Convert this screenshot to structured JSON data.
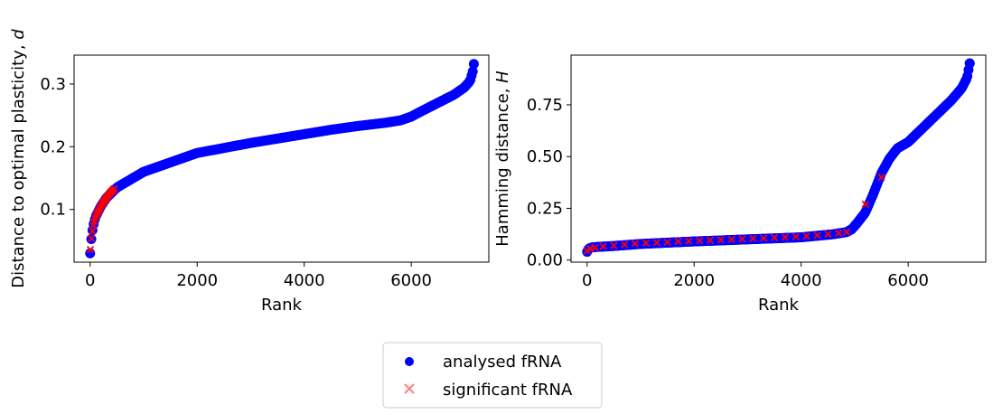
{
  "chart_data": [
    {
      "type": "scatter",
      "xlabel": "Rank",
      "ylabel": "Distance to optimal plasticity, ",
      "ylabel_var": "d",
      "xlim": [
        -300,
        7450
      ],
      "ylim": [
        0.016,
        0.346
      ],
      "xticks": [
        0,
        2000,
        4000,
        6000
      ],
      "xtick_labels": [
        "0",
        "2000",
        "4000",
        "6000"
      ],
      "yticks": [
        0.1,
        0.2,
        0.3
      ],
      "ytick_labels": [
        "0.1",
        "0.2",
        "0.3"
      ],
      "grid": false,
      "series": [
        {
          "name": "analysed fRNA",
          "marker": "circle",
          "color": "#0000ff",
          "curve": [
            [
              0,
              0.03
            ],
            [
              10,
              0.042
            ],
            [
              30,
              0.06
            ],
            [
              60,
              0.075
            ],
            [
              100,
              0.088
            ],
            [
              200,
              0.105
            ],
            [
              300,
              0.118
            ],
            [
              500,
              0.135
            ],
            [
              800,
              0.15
            ],
            [
              1000,
              0.16
            ],
            [
              1500,
              0.175
            ],
            [
              2000,
              0.19
            ],
            [
              2500,
              0.198
            ],
            [
              3000,
              0.206
            ],
            [
              3500,
              0.213
            ],
            [
              4000,
              0.22
            ],
            [
              4500,
              0.227
            ],
            [
              5000,
              0.233
            ],
            [
              5500,
              0.238
            ],
            [
              5800,
              0.242
            ],
            [
              6000,
              0.248
            ],
            [
              6200,
              0.257
            ],
            [
              6500,
              0.27
            ],
            [
              6800,
              0.283
            ],
            [
              7000,
              0.295
            ],
            [
              7100,
              0.305
            ],
            [
              7150,
              0.32
            ],
            [
              7170,
              0.332
            ]
          ]
        },
        {
          "name": "significant fRNA",
          "marker": "x",
          "color": "#ff0000",
          "curve": [
            [
              5,
              0.036
            ],
            [
              20,
              0.052
            ],
            [
              40,
              0.065
            ],
            [
              60,
              0.075
            ],
            [
              90,
              0.085
            ],
            [
              120,
              0.092
            ],
            [
              160,
              0.098
            ],
            [
              220,
              0.108
            ],
            [
              300,
              0.118
            ],
            [
              380,
              0.127
            ],
            [
              450,
              0.133
            ]
          ]
        }
      ]
    },
    {
      "type": "scatter",
      "xlabel": "Rank",
      "ylabel": "Hamming distance, ",
      "ylabel_var": "H",
      "xlim": [
        -300,
        7450
      ],
      "ylim": [
        -0.01,
        0.99
      ],
      "xticks": [
        0,
        2000,
        4000,
        6000
      ],
      "xtick_labels": [
        "0",
        "2000",
        "4000",
        "6000"
      ],
      "yticks": [
        0.0,
        0.25,
        0.5,
        0.75
      ],
      "ytick_labels": [
        "0.00",
        "0.25",
        "0.50",
        "0.75"
      ],
      "grid": false,
      "series": [
        {
          "name": "analysed fRNA",
          "marker": "circle",
          "color": "#0000ff",
          "curve": [
            [
              0,
              0.04
            ],
            [
              30,
              0.055
            ],
            [
              100,
              0.062
            ],
            [
              500,
              0.068
            ],
            [
              1000,
              0.078
            ],
            [
              2000,
              0.09
            ],
            [
              3000,
              0.1
            ],
            [
              4000,
              0.11
            ],
            [
              4600,
              0.125
            ],
            [
              4850,
              0.135
            ],
            [
              4950,
              0.15
            ],
            [
              5050,
              0.18
            ],
            [
              5200,
              0.23
            ],
            [
              5350,
              0.32
            ],
            [
              5500,
              0.42
            ],
            [
              5650,
              0.49
            ],
            [
              5800,
              0.54
            ],
            [
              6000,
              0.57
            ],
            [
              6200,
              0.62
            ],
            [
              6400,
              0.67
            ],
            [
              6600,
              0.72
            ],
            [
              6800,
              0.77
            ],
            [
              7000,
              0.83
            ],
            [
              7100,
              0.88
            ],
            [
              7150,
              0.95
            ]
          ]
        },
        {
          "name": "significant fRNA",
          "marker": "x",
          "color": "#ff0000",
          "points": [
            [
              0,
              0.045
            ],
            [
              60,
              0.055
            ],
            [
              150,
              0.06
            ],
            [
              300,
              0.066
            ],
            [
              500,
              0.07
            ],
            [
              700,
              0.075
            ],
            [
              900,
              0.08
            ],
            [
              1100,
              0.082
            ],
            [
              1300,
              0.084
            ],
            [
              1500,
              0.087
            ],
            [
              1700,
              0.09
            ],
            [
              1900,
              0.092
            ],
            [
              2100,
              0.094
            ],
            [
              2300,
              0.096
            ],
            [
              2500,
              0.098
            ],
            [
              2700,
              0.1
            ],
            [
              2900,
              0.102
            ],
            [
              3100,
              0.104
            ],
            [
              3300,
              0.106
            ],
            [
              3500,
              0.108
            ],
            [
              3700,
              0.11
            ],
            [
              3900,
              0.113
            ],
            [
              4100,
              0.116
            ],
            [
              4300,
              0.12
            ],
            [
              4500,
              0.125
            ],
            [
              4700,
              0.13
            ],
            [
              4850,
              0.135
            ],
            [
              5200,
              0.27
            ],
            [
              5500,
              0.4
            ]
          ]
        }
      ]
    }
  ],
  "legend": {
    "placement": "bottom-center",
    "entries": [
      {
        "label": "analysed fRNA",
        "marker": "circle",
        "color": "#0000ff"
      },
      {
        "label": "significant fRNA",
        "marker": "x",
        "color": "#ff8080"
      }
    ]
  }
}
